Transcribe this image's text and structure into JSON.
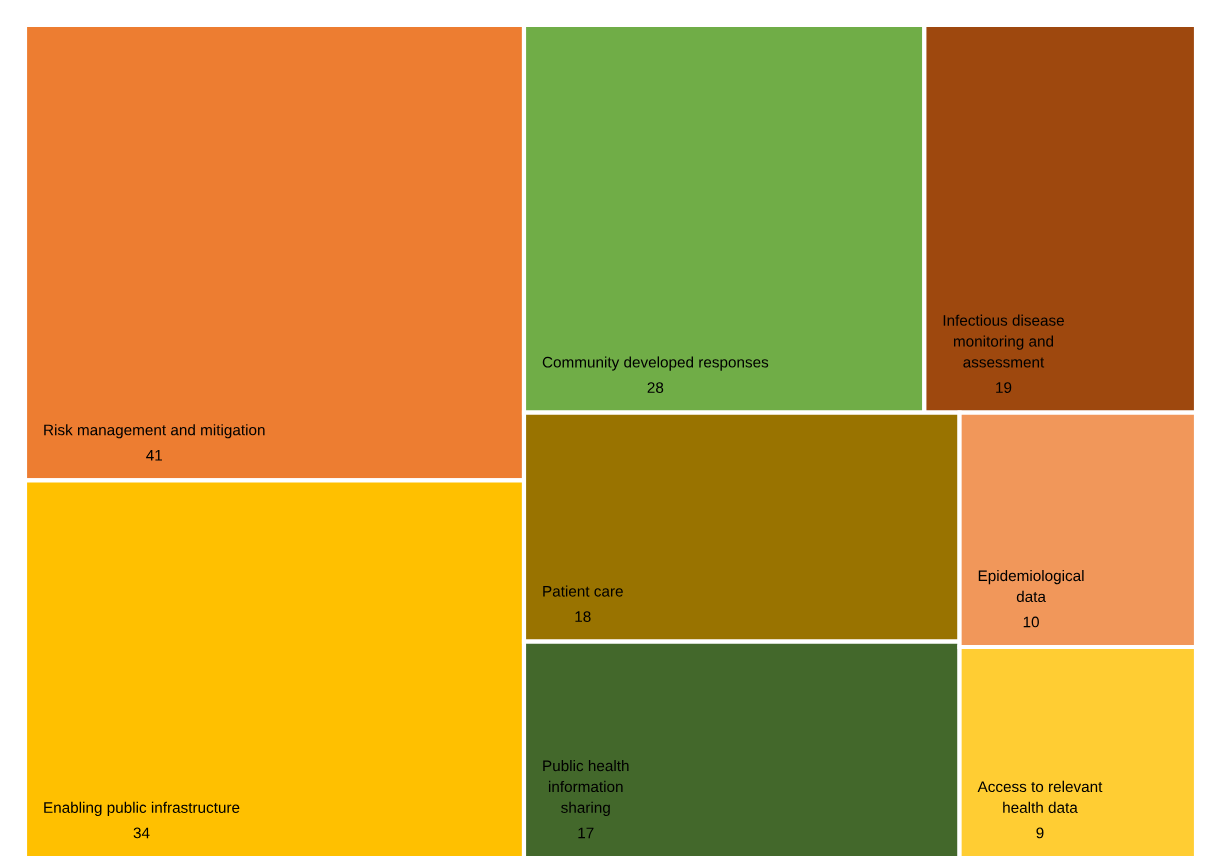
{
  "chart_data": {
    "type": "other",
    "categories": [
      "Risk management and mitigation",
      "Enabling public infrastructure",
      "Community developed responses",
      "Infectious disease\nmonitoring and\nassessment",
      "Patient care",
      "Public health\ninformation\nsharing",
      "Epidemiological\ndata",
      "Access to relevant\nhealth data"
    ],
    "values": [
      41,
      34,
      28,
      19,
      18,
      17,
      10,
      9
    ],
    "data_labels": true,
    "colors": [
      "#ed7d31",
      "#ffc000",
      "#70ad47",
      "#9e480e",
      "#997300",
      "#43682b",
      "#f1975a",
      "#ffcd33"
    ]
  }
}
